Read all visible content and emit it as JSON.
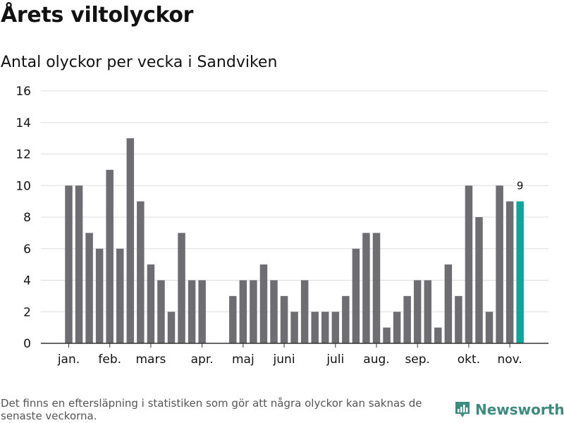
{
  "header": {
    "title": "Årets viltolyckor",
    "subtitle": "Antal olyckor per vecka i Sandviken"
  },
  "footer": {
    "note": "Det finns en eftersläpning i statistiken som gör att några olyckor kan saknas de senaste veckorna.",
    "brand_name": "Newsworthy",
    "brand_icon": "newsworthy-logo-icon"
  },
  "colors": {
    "bar": "#6e6d72",
    "highlight": "#0ea69a",
    "grid": "#dddddd",
    "axis": "#333333",
    "text": "#121212"
  },
  "chart_data": {
    "type": "bar",
    "title": "Antal olyckor per vecka i Sandviken",
    "xlabel": "",
    "ylabel": "",
    "ylim": [
      0,
      16
    ],
    "yticks": [
      0,
      2,
      4,
      6,
      8,
      10,
      12,
      14,
      16
    ],
    "grid": true,
    "x_unit": "week",
    "values": [
      10,
      10,
      7,
      6,
      11,
      6,
      13,
      9,
      5,
      4,
      2,
      7,
      4,
      4,
      null,
      null,
      3,
      4,
      4,
      5,
      4,
      3,
      2,
      4,
      2,
      2,
      2,
      3,
      6,
      7,
      7,
      1,
      2,
      3,
      4,
      4,
      1,
      5,
      3,
      10,
      8,
      2,
      10,
      9,
      9
    ],
    "highlight_index": 44,
    "highlight_label": "9",
    "month_labels": [
      {
        "label": "jan.",
        "week_pos": 1.5
      },
      {
        "label": "feb.",
        "week_pos": 5.5
      },
      {
        "label": "mars",
        "week_pos": 9.5
      },
      {
        "label": "apr.",
        "week_pos": 14.5
      },
      {
        "label": "maj",
        "week_pos": 18.5
      },
      {
        "label": "juni",
        "week_pos": 22.5
      },
      {
        "label": "juli",
        "week_pos": 27.5
      },
      {
        "label": "aug.",
        "week_pos": 31.5
      },
      {
        "label": "sep.",
        "week_pos": 35.5
      },
      {
        "label": "okt.",
        "week_pos": 40.5
      },
      {
        "label": "nov.",
        "week_pos": 44.5
      }
    ]
  }
}
